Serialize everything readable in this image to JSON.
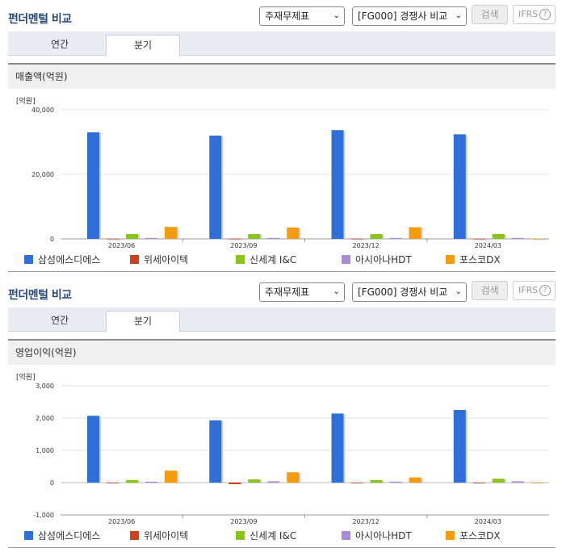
{
  "header": {
    "title": "펀더멘털 비교",
    "select_statement": "주재무제표",
    "select_peer": "[FG000] 경쟁사 비교",
    "search_label": "검색",
    "ifrs_label": "IFRS",
    "help_label": "?"
  },
  "tabs": [
    {
      "label": "연간"
    },
    {
      "label": "분기"
    }
  ],
  "active_tab": "분기",
  "colors": {
    "삼성에스디에스": "#2f6fd8",
    "위세아이텍": "#d2401b",
    "신세계 I&C": "#8ac21e",
    "아시아나HDT": "#a98bdc",
    "포스코DX": "#f59b10"
  },
  "legend": [
    "삼성에스디에스",
    "위세아이텍",
    "신세계 I&C",
    "아시아나HDT",
    "포스코DX"
  ],
  "charts": [
    {
      "panel_title": "매출액(억원)",
      "unit": "[억원]",
      "chart_data": {
        "type": "bar",
        "categories": [
          "2023/06",
          "2023/09",
          "2023/12",
          "2024/03"
        ],
        "ylim": [
          0,
          40000
        ],
        "yticks": [
          "0",
          "20,000",
          "40,000"
        ],
        "ytick_values": [
          0,
          20000,
          40000
        ],
        "series": [
          {
            "name": "삼성에스디에스",
            "values": [
              33000,
              32000,
              33700,
              32400
            ]
          },
          {
            "name": "위세아이텍",
            "values": [
              70,
              80,
              90,
              60
            ]
          },
          {
            "name": "신세계 I&C",
            "values": [
              1500,
              1500,
              1500,
              1500
            ]
          },
          {
            "name": "아시아나HDT",
            "values": [
              300,
              300,
              300,
              300
            ]
          },
          {
            "name": "포스코DX",
            "values": [
              3700,
              3500,
              3600,
              100
            ]
          }
        ]
      }
    },
    {
      "panel_title": "영업이익(억원)",
      "unit": "[억원]",
      "chart_data": {
        "type": "bar",
        "categories": [
          "2023/06",
          "2023/09",
          "2023/12",
          "2024/03"
        ],
        "ylim": [
          -1000,
          3000
        ],
        "yticks": [
          "-1,000",
          "0",
          "1,000",
          "2,000",
          "3,000"
        ],
        "ytick_values": [
          -1000,
          0,
          1000,
          2000,
          3000
        ],
        "series": [
          {
            "name": "삼성에스디에스",
            "values": [
              2070,
              1930,
              2140,
              2250
            ]
          },
          {
            "name": "위세아이텍",
            "values": [
              -20,
              -50,
              -10,
              -10
            ]
          },
          {
            "name": "신세계 I&C",
            "values": [
              80,
              100,
              80,
              120
            ]
          },
          {
            "name": "아시아나HDT",
            "values": [
              30,
              40,
              30,
              40
            ]
          },
          {
            "name": "포스코DX",
            "values": [
              370,
              320,
              160,
              -20
            ]
          }
        ]
      }
    }
  ]
}
